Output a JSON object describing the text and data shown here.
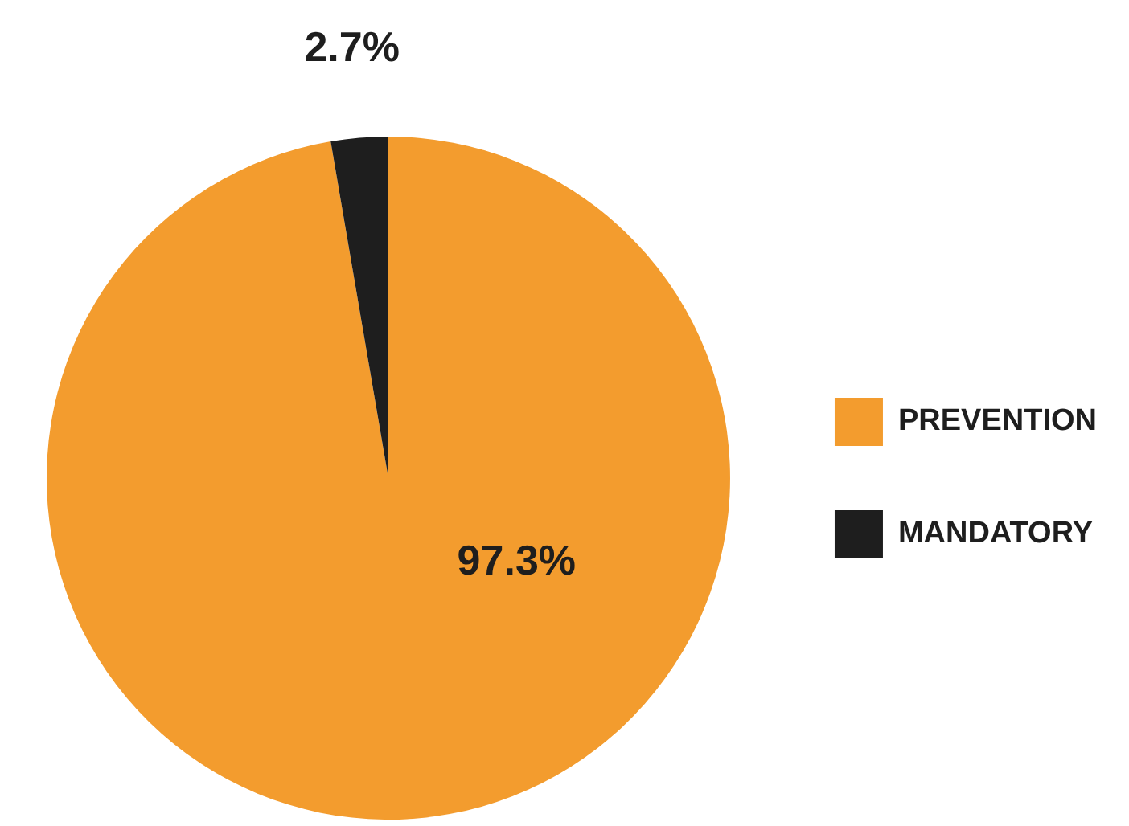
{
  "chart_data": {
    "type": "pie",
    "categories": [
      "PREVENTION",
      "MANDATORY"
    ],
    "values": [
      97.3,
      2.7
    ],
    "colors": [
      "#f39c2e",
      "#1e1e1e"
    ],
    "value_labels": [
      "97.3%",
      "2.7%"
    ],
    "legend": "right"
  }
}
